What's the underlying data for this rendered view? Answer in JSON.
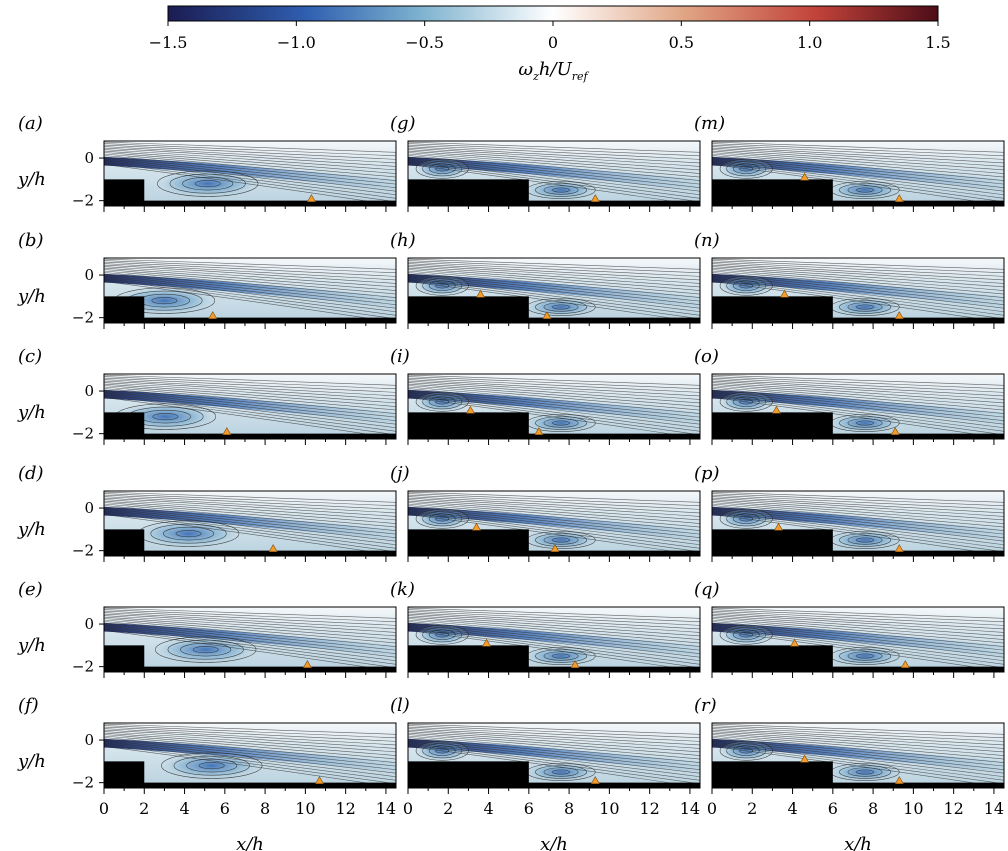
{
  "colorbar": {
    "ticks": [
      "−1.5",
      "−1.0",
      "−0.5",
      "0",
      "0.5",
      "1.0",
      "1.5"
    ],
    "label_omega": "ω",
    "label_z": "z",
    "label_mid": "h/U",
    "label_ref": "ref",
    "colors": [
      "#1b1c52",
      "#2f6db5",
      "#7fb3cf",
      "#ffffff",
      "#e0a585",
      "#c2433a",
      "#4d0d18"
    ]
  },
  "axes": {
    "y_label": "y/h",
    "x_label": "x/h",
    "y_ticks": [
      "0",
      "−2"
    ],
    "x_ticks": [
      "0",
      "2",
      "4",
      "6",
      "8",
      "10",
      "12",
      "14"
    ]
  },
  "panels": [
    {
      "label": "(a)",
      "step2": false,
      "markers": [
        [
          10.3,
          -2
        ]
      ]
    },
    {
      "label": "(b)",
      "step2": false,
      "markers": [
        [
          5.4,
          -2
        ]
      ]
    },
    {
      "label": "(c)",
      "step2": false,
      "markers": [
        [
          6.1,
          -2
        ]
      ]
    },
    {
      "label": "(d)",
      "step2": false,
      "markers": [
        [
          8.4,
          -2
        ]
      ]
    },
    {
      "label": "(e)",
      "step2": false,
      "markers": [
        [
          10.1,
          -2
        ]
      ]
    },
    {
      "label": "(f)",
      "step2": false,
      "markers": [
        [
          10.7,
          -2
        ]
      ]
    },
    {
      "label": "(g)",
      "step2": true,
      "markers": [
        [
          9.3,
          -2
        ]
      ]
    },
    {
      "label": "(h)",
      "step2": true,
      "markers": [
        [
          3.6,
          -1
        ],
        [
          6.9,
          -2
        ]
      ]
    },
    {
      "label": "(i)",
      "step2": true,
      "markers": [
        [
          3.1,
          -1
        ],
        [
          6.5,
          -2
        ]
      ]
    },
    {
      "label": "(j)",
      "step2": true,
      "markers": [
        [
          3.4,
          -1
        ],
        [
          7.3,
          -2
        ]
      ]
    },
    {
      "label": "(k)",
      "step2": true,
      "markers": [
        [
          3.9,
          -1
        ],
        [
          8.3,
          -2
        ]
      ]
    },
    {
      "label": "(l)",
      "step2": true,
      "markers": [
        [
          9.3,
          -2
        ]
      ]
    },
    {
      "label": "(m)",
      "step2": true,
      "markers": [
        [
          4.6,
          -1
        ],
        [
          9.3,
          -2
        ]
      ]
    },
    {
      "label": "(n)",
      "step2": true,
      "markers": [
        [
          3.6,
          -1
        ],
        [
          9.3,
          -2
        ]
      ]
    },
    {
      "label": "(o)",
      "step2": true,
      "markers": [
        [
          3.2,
          -1
        ],
        [
          9.1,
          -2
        ]
      ]
    },
    {
      "label": "(p)",
      "step2": true,
      "markers": [
        [
          3.3,
          -1
        ],
        [
          9.3,
          -2
        ]
      ]
    },
    {
      "label": "(q)",
      "step2": true,
      "markers": [
        [
          4.1,
          -1
        ],
        [
          9.6,
          -2
        ]
      ]
    },
    {
      "label": "(r)",
      "step2": true,
      "markers": [
        [
          4.6,
          -1
        ],
        [
          9.3,
          -2
        ]
      ]
    }
  ]
}
